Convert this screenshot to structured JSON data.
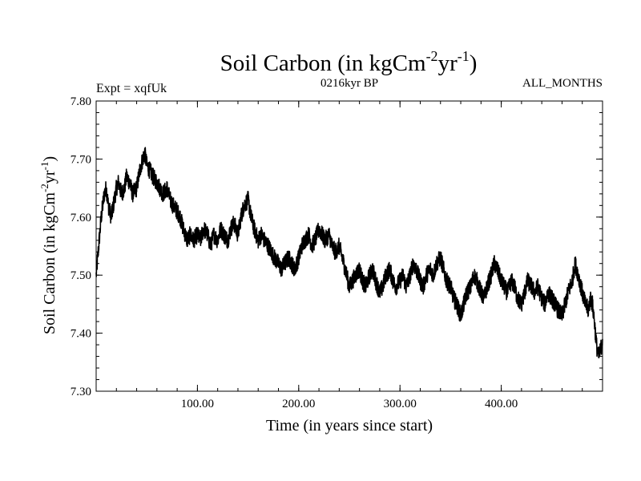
{
  "chart_data": {
    "type": "line",
    "title": "Soil Carbon (in kgCm",
    "title_sup1": "-2",
    "title_mid": "yr",
    "title_sup2": "-1",
    "title_end": ")",
    "left_label": "Expt = xqfUk",
    "center_label": "0216kyr BP",
    "right_label": "ALL_MONTHS",
    "xlabel": "Time (in years since start)",
    "ylabel": "Soil Carbon (in kgCm",
    "ylabel_sup1": "-2",
    "ylabel_mid": "yr",
    "ylabel_sup2": "-1",
    "ylabel_end": ")",
    "xlim": [
      0,
      500
    ],
    "ylim": [
      7.3,
      7.8
    ],
    "x_ticks": [
      100,
      200,
      300,
      400
    ],
    "x_tick_labels": [
      "100.00",
      "200.00",
      "300.00",
      "400.00"
    ],
    "y_ticks": [
      7.3,
      7.4,
      7.5,
      7.6,
      7.7,
      7.8
    ],
    "y_tick_labels": [
      "7.30",
      "7.40",
      "7.50",
      "7.60",
      "7.70",
      "7.80"
    ],
    "grid": false,
    "line_color": "#000000",
    "series": [
      {
        "x": [
          0,
          2,
          5,
          8,
          10,
          12,
          15,
          18,
          20,
          22,
          25,
          28,
          30,
          33,
          36,
          40,
          43,
          46,
          48,
          50,
          53,
          56,
          60,
          63,
          66,
          70,
          73,
          76,
          80,
          83,
          86,
          90,
          93,
          96,
          100,
          103,
          106,
          110,
          113,
          116,
          120,
          123,
          126,
          130,
          133,
          136,
          140,
          143,
          146,
          150,
          153,
          156,
          160,
          163,
          166,
          170,
          173,
          176,
          180,
          183,
          186,
          190,
          193,
          196,
          200,
          203,
          206,
          210,
          213,
          216,
          220,
          223,
          226,
          230,
          233,
          236,
          240,
          243,
          246,
          250,
          253,
          256,
          260,
          263,
          266,
          270,
          273,
          276,
          280,
          283,
          286,
          290,
          293,
          296,
          300,
          303,
          306,
          310,
          313,
          316,
          320,
          323,
          326,
          330,
          333,
          336,
          340,
          343,
          346,
          350,
          353,
          356,
          360,
          363,
          366,
          370,
          373,
          376,
          380,
          383,
          386,
          390,
          393,
          396,
          400,
          403,
          406,
          410,
          413,
          416,
          420,
          423,
          426,
          430,
          433,
          436,
          440,
          443,
          446,
          450,
          453,
          456,
          460,
          463,
          466,
          470,
          473,
          476,
          480,
          483,
          486,
          488,
          490,
          492,
          494,
          496,
          498,
          500
        ],
        "y": [
          7.5,
          7.54,
          7.6,
          7.64,
          7.65,
          7.62,
          7.6,
          7.63,
          7.65,
          7.66,
          7.64,
          7.65,
          7.67,
          7.66,
          7.64,
          7.65,
          7.68,
          7.7,
          7.71,
          7.69,
          7.68,
          7.67,
          7.66,
          7.65,
          7.64,
          7.65,
          7.63,
          7.62,
          7.61,
          7.6,
          7.58,
          7.56,
          7.57,
          7.56,
          7.57,
          7.56,
          7.58,
          7.57,
          7.55,
          7.57,
          7.56,
          7.58,
          7.57,
          7.56,
          7.58,
          7.59,
          7.57,
          7.6,
          7.62,
          7.63,
          7.6,
          7.58,
          7.56,
          7.57,
          7.56,
          7.55,
          7.54,
          7.53,
          7.52,
          7.51,
          7.52,
          7.53,
          7.52,
          7.51,
          7.53,
          7.55,
          7.56,
          7.57,
          7.55,
          7.56,
          7.58,
          7.57,
          7.56,
          7.57,
          7.55,
          7.54,
          7.55,
          7.53,
          7.51,
          7.48,
          7.49,
          7.5,
          7.51,
          7.49,
          7.48,
          7.5,
          7.51,
          7.49,
          7.47,
          7.48,
          7.5,
          7.51,
          7.49,
          7.48,
          7.49,
          7.5,
          7.48,
          7.5,
          7.52,
          7.51,
          7.49,
          7.48,
          7.5,
          7.51,
          7.5,
          7.52,
          7.53,
          7.51,
          7.49,
          7.48,
          7.46,
          7.45,
          7.43,
          7.45,
          7.47,
          7.48,
          7.5,
          7.49,
          7.47,
          7.46,
          7.48,
          7.5,
          7.52,
          7.51,
          7.49,
          7.48,
          7.47,
          7.49,
          7.48,
          7.46,
          7.45,
          7.47,
          7.49,
          7.48,
          7.47,
          7.48,
          7.46,
          7.45,
          7.47,
          7.46,
          7.45,
          7.44,
          7.43,
          7.45,
          7.47,
          7.49,
          7.52,
          7.5,
          7.47,
          7.45,
          7.44,
          7.46,
          7.45,
          7.42,
          7.38,
          7.36,
          7.37,
          7.39
        ]
      }
    ]
  }
}
